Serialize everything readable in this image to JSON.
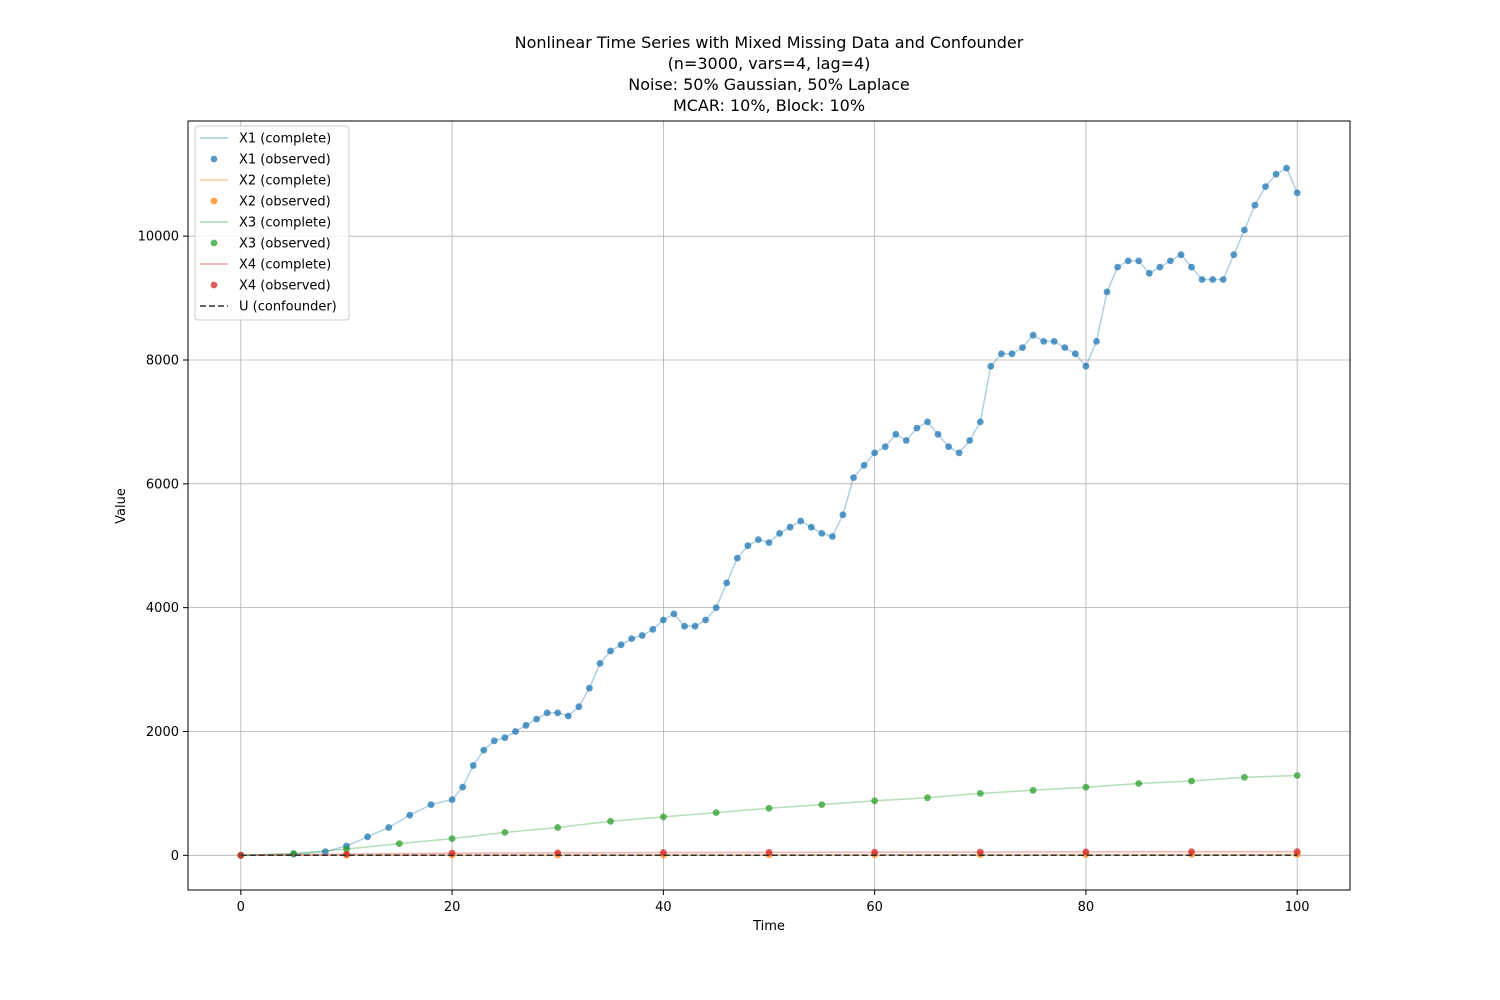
{
  "chart_data": {
    "type": "line",
    "title_lines": [
      "Nonlinear Time Series with Mixed Missing Data and Confounder",
      "(n=3000, vars=4, lag=4)",
      "Noise: 50% Gaussian, 50% Laplace",
      "MCAR: 10%, Block: 10%"
    ],
    "xlabel": "Time",
    "ylabel": "Value",
    "xlim": [
      -5,
      105
    ],
    "ylim": [
      -560,
      11860
    ],
    "xticks": [
      0,
      20,
      40,
      60,
      80,
      100
    ],
    "yticks": [
      0,
      2000,
      4000,
      6000,
      8000,
      10000
    ],
    "grid": true,
    "legend_position": "upper-left",
    "colors": {
      "X1": "#1f77b4",
      "X2": "#ff7f0e",
      "X3": "#2ca02c",
      "X4": "#d62728",
      "U": "#333333"
    },
    "legend": [
      {
        "label": "X1 (complete)",
        "kind": "line",
        "series": "X1"
      },
      {
        "label": "X1 (observed)",
        "kind": "marker",
        "series": "X1"
      },
      {
        "label": "X2 (complete)",
        "kind": "line",
        "series": "X2"
      },
      {
        "label": "X2 (observed)",
        "kind": "marker",
        "series": "X2"
      },
      {
        "label": "X3 (complete)",
        "kind": "line",
        "series": "X3"
      },
      {
        "label": "X3 (observed)",
        "kind": "marker",
        "series": "X3"
      },
      {
        "label": "X4 (complete)",
        "kind": "line",
        "series": "X4"
      },
      {
        "label": "X4 (observed)",
        "kind": "marker",
        "series": "X4"
      },
      {
        "label": "U (confounder)",
        "kind": "dashed",
        "series": "U"
      }
    ],
    "series": [
      {
        "name": "X1",
        "x": [
          0,
          5,
          8,
          10,
          12,
          14,
          16,
          18,
          20,
          21,
          22,
          23,
          24,
          25,
          26,
          27,
          28,
          29,
          30,
          31,
          32,
          33,
          34,
          35,
          36,
          37,
          38,
          39,
          40,
          41,
          42,
          43,
          44,
          45,
          46,
          47,
          48,
          49,
          50,
          51,
          52,
          53,
          54,
          55,
          56,
          57,
          58,
          59,
          60,
          61,
          62,
          63,
          64,
          65,
          66,
          67,
          68,
          69,
          70,
          71,
          72,
          73,
          74,
          75,
          76,
          77,
          78,
          79,
          80,
          81,
          82,
          83,
          84,
          85,
          86,
          87,
          88,
          89,
          90,
          91,
          92,
          93,
          94,
          95,
          96,
          97,
          98,
          99,
          100
        ],
        "y": [
          0,
          20,
          60,
          150,
          300,
          450,
          650,
          820,
          900,
          1100,
          1450,
          1700,
          1850,
          1900,
          2000,
          2100,
          2200,
          2300,
          2300,
          2250,
          2400,
          2700,
          3100,
          3300,
          3400,
          3500,
          3550,
          3650,
          3800,
          3900,
          3700,
          3700,
          3800,
          4000,
          4400,
          4800,
          5000,
          5100,
          5050,
          5200,
          5300,
          5400,
          5300,
          5200,
          5150,
          5500,
          6100,
          6300,
          6500,
          6600,
          6800,
          6700,
          6900,
          7000,
          6800,
          6600,
          6500,
          6700,
          7000,
          7900,
          8100,
          8100,
          8200,
          8400,
          8300,
          8300,
          8200,
          8100,
          7900,
          8300,
          9100,
          9500,
          9600,
          9600,
          9400,
          9500,
          9600,
          9700,
          9500,
          9300,
          9300,
          9300,
          9700,
          10100,
          10500,
          10800,
          11000,
          11100,
          10700
        ]
      },
      {
        "name": "X2",
        "x": [
          0,
          10,
          20,
          30,
          40,
          50,
          60,
          70,
          80,
          90,
          100
        ],
        "y": [
          0,
          3,
          5,
          6,
          8,
          10,
          11,
          12,
          14,
          15,
          16
        ]
      },
      {
        "name": "X3",
        "x": [
          0,
          5,
          10,
          15,
          20,
          25,
          30,
          35,
          40,
          45,
          50,
          55,
          60,
          65,
          70,
          75,
          80,
          85,
          90,
          95,
          100
        ],
        "y": [
          0,
          30,
          100,
          190,
          270,
          370,
          450,
          550,
          620,
          690,
          760,
          820,
          880,
          930,
          1000,
          1050,
          1100,
          1160,
          1200,
          1260,
          1290
        ]
      },
      {
        "name": "X4",
        "x": [
          0,
          10,
          20,
          30,
          40,
          50,
          60,
          70,
          80,
          90,
          100
        ],
        "y": [
          0,
          20,
          35,
          40,
          45,
          48,
          50,
          52,
          55,
          60,
          60
        ]
      },
      {
        "name": "U",
        "x": [
          0,
          20,
          40,
          60,
          80,
          100
        ],
        "y": [
          0,
          0,
          0,
          0,
          0,
          0
        ]
      }
    ]
  }
}
